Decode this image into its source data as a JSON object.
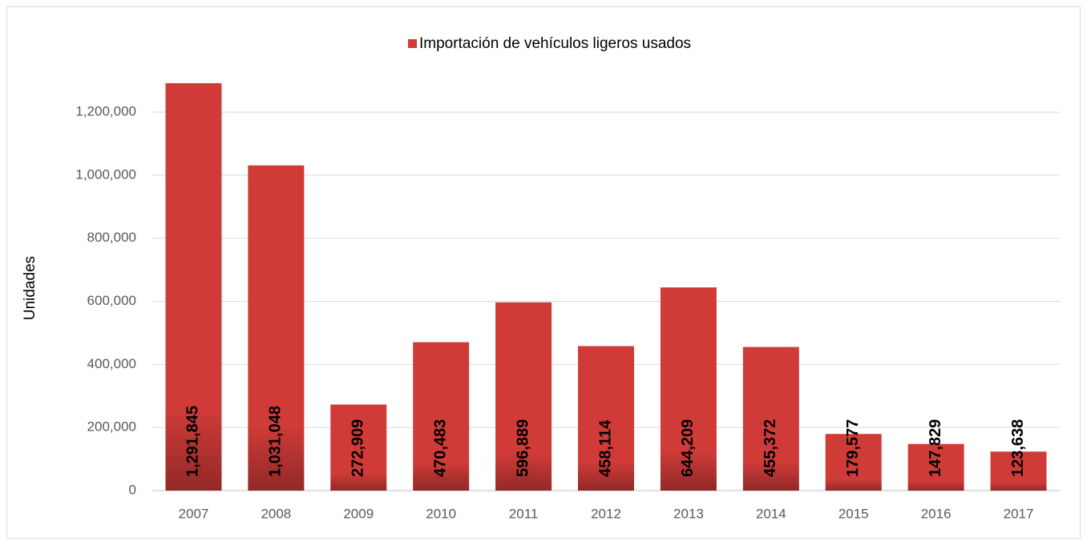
{
  "chart_data": {
    "type": "bar",
    "y_label": "Unidades",
    "categories": [
      "2007",
      "2008",
      "2009",
      "2010",
      "2011",
      "2012",
      "2013",
      "2014",
      "2015",
      "2016",
      "2017"
    ],
    "series": [
      {
        "name": "Importación de vehículos ligeros usados",
        "color": "#d03b38",
        "values": [
          1291845,
          1031048,
          272909,
          470483,
          596889,
          458114,
          644209,
          455372,
          179577,
          147829,
          123638
        ],
        "value_labels": [
          "1,291,845",
          "1,031,048",
          "272,909",
          "470,483",
          "596,889",
          "458,114",
          "644,209",
          "455,372",
          "179,577",
          "147,829",
          "123,638"
        ]
      }
    ],
    "ylim": [
      0,
      1400000
    ],
    "yticks": [
      0,
      {
        "value": 200000,
        "label": "200,000"
      },
      {
        "value": 400000,
        "label": "400,000"
      },
      {
        "value": 600000,
        "label": "600,000"
      },
      {
        "value": 800000,
        "label": "800,000"
      },
      {
        "value": 1000000,
        "label": "1,000,000"
      },
      {
        "value": 1200000,
        "label": "1,200,000"
      }
    ],
    "grid": true,
    "legend": "top"
  }
}
